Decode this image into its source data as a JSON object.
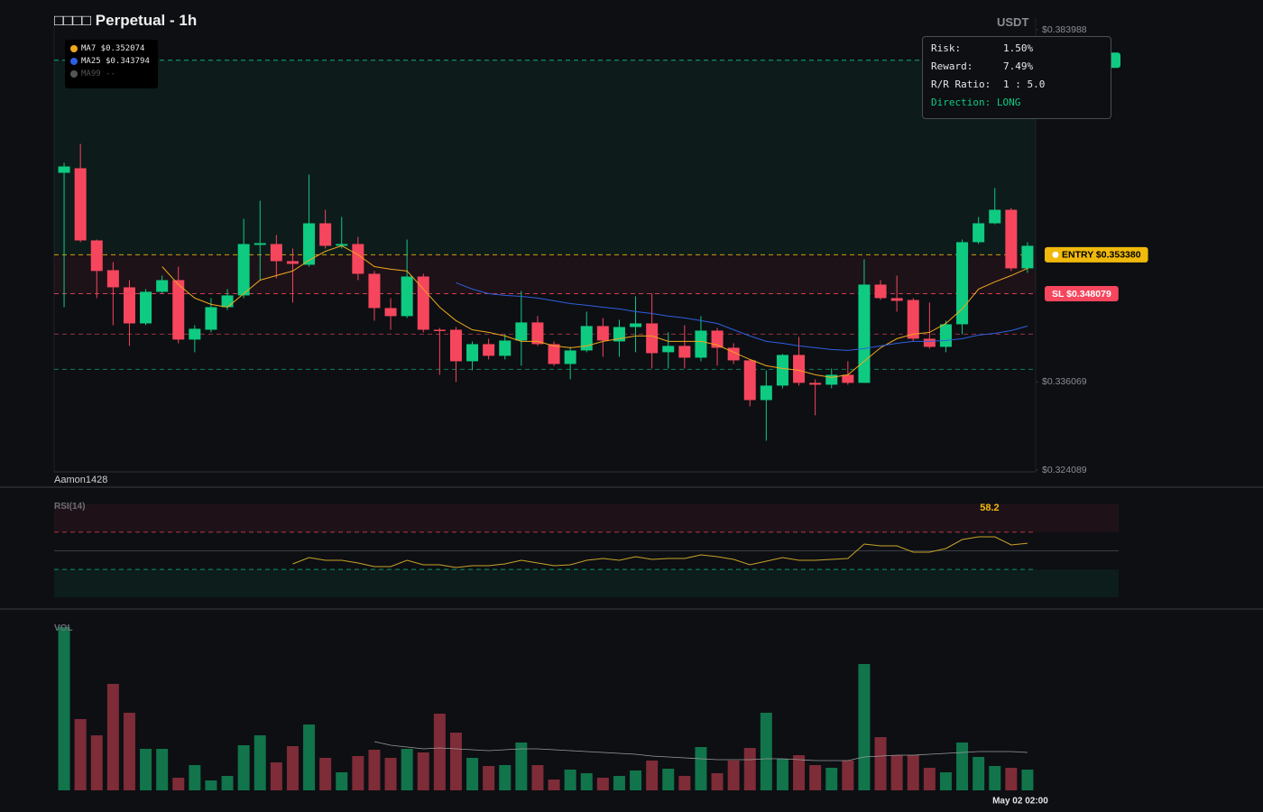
{
  "chart_data": [
    {
      "type": "candlestick",
      "title": "□□□□ Perpetual - 1h",
      "currency": "USDT",
      "watermark": "Aamon1428",
      "categories": [
        null,
        null,
        null,
        null,
        null,
        null,
        null,
        null,
        null,
        null,
        null,
        null,
        null,
        null,
        null,
        null,
        null,
        null,
        null,
        null,
        null,
        null,
        null,
        null,
        null,
        null,
        null,
        null,
        null,
        null,
        null,
        null,
        null,
        null,
        null,
        null,
        null,
        null,
        null,
        null,
        null,
        null,
        null,
        null,
        null,
        null,
        null,
        null,
        null,
        null,
        null,
        null,
        null,
        null,
        null,
        null,
        null,
        null,
        null,
        "May 02 02:00"
      ],
      "open": [
        0.36453,
        0.36515,
        0.35533,
        0.35128,
        0.34895,
        0.34404,
        0.34834,
        0.34993,
        0.34184,
        0.34318,
        0.34625,
        0.34785,
        0.35472,
        0.35484,
        0.35251,
        0.35202,
        0.35766,
        0.3546,
        0.35484,
        0.35079,
        0.34613,
        0.34503,
        0.35042,
        0.34318,
        0.34318,
        0.33889,
        0.34122,
        0.33963,
        0.34171,
        0.34417,
        0.34122,
        0.33852,
        0.34036,
        0.34368,
        0.34159,
        0.34355,
        0.34404,
        0.34012,
        0.34098,
        0.33938,
        0.34306,
        0.34073,
        0.33901,
        0.33361,
        0.33558,
        0.33975,
        0.33595,
        0.3357,
        0.33705,
        0.33595,
        0.34932,
        0.34748,
        0.34723,
        0.34196,
        0.34085,
        0.34392,
        0.35509,
        0.35766,
        0.3595,
        0.35153
      ],
      "high": [
        0.36588,
        0.36846,
        0.35545,
        0.35239,
        0.34993,
        0.34871,
        0.35055,
        0.35177,
        0.3438,
        0.34748,
        0.34871,
        0.35828,
        0.36073,
        0.35607,
        0.35423,
        0.36429,
        0.3595,
        0.35852,
        0.35582,
        0.35117,
        0.34748,
        0.35545,
        0.35079,
        0.34343,
        0.34355,
        0.34159,
        0.34196,
        0.34257,
        0.34846,
        0.34503,
        0.34159,
        0.34085,
        0.34564,
        0.34478,
        0.34453,
        0.34772,
        0.34809,
        0.34282,
        0.3438,
        0.34503,
        0.34343,
        0.34134,
        0.33914,
        0.33766,
        0.33987,
        0.3422,
        0.33644,
        0.33791,
        0.33889,
        0.35276,
        0.34993,
        0.35055,
        0.34748,
        0.34687,
        0.34441,
        0.35545,
        0.35852,
        0.36245,
        0.35975,
        0.35509
      ],
      "low": [
        0.34625,
        0.35509,
        0.34748,
        0.3438,
        0.34098,
        0.3438,
        0.34809,
        0.34134,
        0.34012,
        0.34282,
        0.34588,
        0.34748,
        0.34993,
        0.35018,
        0.34687,
        0.35177,
        0.35423,
        0.35423,
        0.34993,
        0.34441,
        0.34318,
        0.34478,
        0.34282,
        0.33705,
        0.33607,
        0.33766,
        0.33914,
        0.33914,
        0.33828,
        0.34098,
        0.33828,
        0.33644,
        0.34012,
        0.3395,
        0.3395,
        0.34012,
        0.33791,
        0.33791,
        0.33791,
        0.33889,
        0.33828,
        0.33852,
        0.33276,
        0.32809,
        0.33521,
        0.33558,
        0.33153,
        0.33521,
        0.3357,
        0.33595,
        0.34723,
        0.34564,
        0.34159,
        0.34061,
        0.34012,
        0.34257,
        0.35484,
        0.35754,
        0.35117,
        0.35092
      ],
      "close": [
        0.36539,
        0.35533,
        0.35117,
        0.34895,
        0.34404,
        0.34834,
        0.34993,
        0.34184,
        0.34331,
        0.34625,
        0.34785,
        0.35484,
        0.35496,
        0.35251,
        0.35214,
        0.35766,
        0.3546,
        0.35484,
        0.35079,
        0.34613,
        0.34503,
        0.35042,
        0.34318,
        0.34306,
        0.33889,
        0.34122,
        0.33963,
        0.34171,
        0.34417,
        0.34122,
        0.33852,
        0.34036,
        0.34368,
        0.34171,
        0.34355,
        0.34404,
        0.33999,
        0.34098,
        0.33938,
        0.34306,
        0.34073,
        0.33901,
        0.33361,
        0.33558,
        0.33975,
        0.33595,
        0.3357,
        0.33705,
        0.33595,
        0.34932,
        0.34748,
        0.34711,
        0.34196,
        0.34085,
        0.34392,
        0.35509,
        0.35766,
        0.3595,
        0.35153,
        0.3546
      ],
      "up_color": "#0ecb81",
      "down_color": "#f6465d",
      "ylim": [
        0.324089,
        0.383988
      ],
      "yticks": [
        {
          "value": 0.324089,
          "label": "$0.324089"
        },
        {
          "value": 0.336069,
          "label": "$0.336069"
        },
        {
          "value": 0.383988,
          "label": "$0.383988"
        }
      ],
      "series": [
        {
          "name": "MA7 $0.352074",
          "color": "#f0a81c",
          "values": [
            null,
            null,
            null,
            null,
            null,
            null,
            0.35177,
            0.34932,
            0.34748,
            0.34662,
            0.34625,
            0.34809,
            0.34993,
            0.35055,
            0.35117,
            0.35263,
            0.35386,
            0.3546,
            0.35337,
            0.35177,
            0.35141,
            0.35117,
            0.34871,
            0.34625,
            0.34441,
            0.34318,
            0.34282,
            0.34233,
            0.34159,
            0.34159,
            0.34098,
            0.34073,
            0.34098,
            0.34159,
            0.34196,
            0.34233,
            0.34233,
            0.34159,
            0.34159,
            0.34159,
            0.3411,
            0.34012,
            0.33914,
            0.33828,
            0.33791,
            0.33766,
            0.33705,
            0.33668,
            0.33705,
            0.33889,
            0.34073,
            0.34196,
            0.34257,
            0.34282,
            0.34404,
            0.34601,
            0.34871,
            0.34969,
            0.35055,
            0.35153
          ]
        },
        {
          "name": "MA25 $0.343794",
          "color": "#2f5fe0",
          "values": [
            null,
            null,
            null,
            null,
            null,
            null,
            null,
            null,
            null,
            null,
            null,
            null,
            null,
            null,
            null,
            null,
            null,
            null,
            null,
            null,
            null,
            null,
            null,
            null,
            0.34957,
            0.34871,
            0.34809,
            0.34785,
            0.34772,
            0.34748,
            0.34711,
            0.34674,
            0.3465,
            0.34625,
            0.34601,
            0.34564,
            0.34539,
            0.34503,
            0.34478,
            0.34441,
            0.34404,
            0.34318,
            0.34233,
            0.34159,
            0.34134,
            0.34098,
            0.34073,
            0.34049,
            0.34036,
            0.34061,
            0.34098,
            0.34134,
            0.34159,
            0.34159,
            0.34171,
            0.34196,
            0.34245,
            0.34269,
            0.34306,
            0.34368
          ]
        },
        {
          "name": "MA99 --",
          "color": "#555555"
        }
      ],
      "levels": [
        {
          "value": 0.37985,
          "color": "#0ecb81",
          "tag": true
        },
        {
          "value": 0.35338,
          "label": "ENTRY $0.353380",
          "color": "#f0b90b",
          "text_color": "#000000",
          "dot": true,
          "tag": true
        },
        {
          "value": 0.348079,
          "label": "SL $0.348079",
          "color": "#f6465d",
          "tag": true
        },
        {
          "value": 0.34257,
          "color": "#f6465d"
        },
        {
          "value": 0.33779,
          "color": "#0ecb81"
        }
      ],
      "info": [
        {
          "label": "Risk:",
          "value": "1.50%"
        },
        {
          "label": "Reward:",
          "value": "7.49%"
        },
        {
          "label": "R/R Ratio:",
          "value": "1 : 5.0"
        }
      ],
      "direction": "Direction: LONG"
    },
    {
      "type": "line",
      "title": "RSI(14)",
      "color": "#c9a227",
      "values": [
        null,
        null,
        null,
        null,
        null,
        null,
        null,
        null,
        null,
        null,
        null,
        null,
        null,
        null,
        35.9,
        42.7,
        39.8,
        39.8,
        36.9,
        33.0,
        33.0,
        39.8,
        35.0,
        35.0,
        32.0,
        34.0,
        34.0,
        35.9,
        39.8,
        36.9,
        34.0,
        35.0,
        39.8,
        41.7,
        39.8,
        43.7,
        40.8,
        41.7,
        41.7,
        45.6,
        43.7,
        40.8,
        35.0,
        38.8,
        42.7,
        39.8,
        39.8,
        40.8,
        41.7,
        57.3,
        55.3,
        55.3,
        48.5,
        48.5,
        52.4,
        62.1,
        65.0,
        65.0,
        56.3,
        58.2
      ],
      "ylim": [
        0,
        100
      ],
      "levels": [
        {
          "value": 70,
          "color": "#f6465d",
          "dashed": true
        },
        {
          "value": 50,
          "color": "#3a3e46"
        },
        {
          "value": 30,
          "color": "#0ecb81",
          "dashed": true
        }
      ]
    },
    {
      "type": "bar",
      "title": "VOL",
      "up_color": "#11744b",
      "down_color": "#7e2c37",
      "values": [
        181,
        79,
        61,
        118,
        86,
        46,
        46,
        14,
        28,
        11,
        16,
        50,
        61,
        31,
        49,
        73,
        36,
        20,
        38,
        45,
        36,
        46,
        42,
        85,
        64,
        36,
        27,
        28,
        53,
        28,
        12,
        23,
        19,
        14,
        16,
        22,
        33,
        24,
        16,
        48,
        19,
        33,
        47,
        86,
        35,
        39,
        28,
        25,
        33,
        140,
        59,
        39,
        39,
        25,
        20,
        53,
        37,
        27,
        25,
        23
      ],
      "ylim": [
        0,
        185
      ],
      "series": [
        {
          "color": "#9a9a9a",
          "values": [
            null,
            null,
            null,
            null,
            null,
            null,
            null,
            null,
            null,
            null,
            null,
            null,
            null,
            null,
            null,
            null,
            null,
            null,
            null,
            54,
            50,
            48,
            46,
            47,
            46,
            45,
            44,
            45,
            46,
            46,
            45,
            44,
            43,
            42,
            41,
            40,
            38,
            37,
            36,
            35,
            34,
            34,
            34,
            35,
            35,
            34,
            33,
            33,
            33,
            37,
            38,
            39,
            39,
            40,
            41,
            42,
            43,
            43,
            43,
            42
          ]
        }
      ]
    }
  ]
}
